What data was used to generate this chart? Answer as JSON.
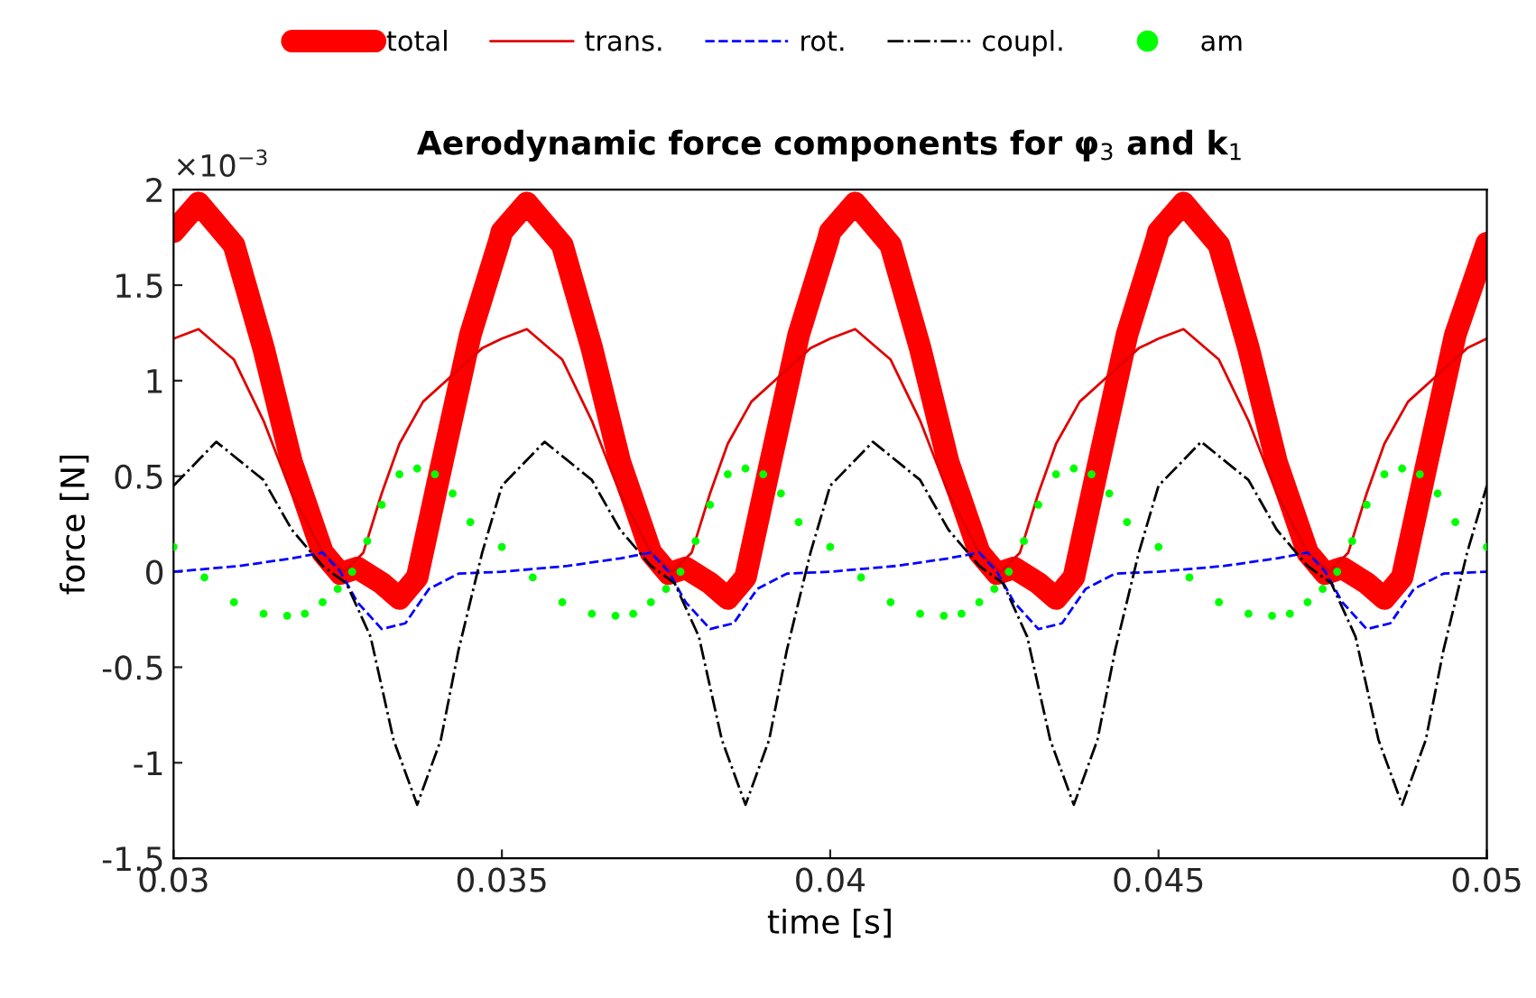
{
  "chart_data": {
    "type": "line",
    "title": "Aerodynamic force components for φ$_{3}$ and k$_{1}$",
    "xlabel": "time [s]",
    "ylabel": "force [N]",
    "annotations": [
      "×10$^{−3}$"
    ],
    "xlim": [
      0.03,
      0.05
    ],
    "xticks": [
      0.03,
      0.035,
      0.04,
      0.045,
      0.05
    ],
    "ylim": [
      -1.5,
      2
    ],
    "yticks": [
      -1.5,
      -1,
      -0.5,
      0,
      0.5,
      1,
      1.5,
      2
    ],
    "grid": false,
    "legend": "top",
    "series": [
      {
        "name": "total",
        "color": "#ff0000",
        "line_style": "solid",
        "marker": "none",
        "x": [
          0.03,
          0.03038,
          0.03092,
          0.03137,
          0.0318,
          0.03227,
          0.03254,
          0.0328,
          0.03317,
          0.03344,
          0.03371,
          0.03407,
          0.03452,
          0.03497,
          0.035,
          0.03538,
          0.03592,
          0.03637,
          0.0368,
          0.03727,
          0.03754,
          0.0378,
          0.03817,
          0.03844,
          0.03871,
          0.03907,
          0.03952,
          0.03997,
          0.04,
          0.04038,
          0.04092,
          0.04137,
          0.0418,
          0.04227,
          0.04254,
          0.0428,
          0.04317,
          0.04344,
          0.04371,
          0.04407,
          0.04452,
          0.04497,
          0.045,
          0.04538,
          0.04592,
          0.04637,
          0.0468,
          0.04727,
          0.04754,
          0.0478,
          0.04817,
          0.04844,
          0.04871,
          0.04907,
          0.04952,
          0.05
        ],
        "values": [
          1.78,
          1.93,
          1.71,
          1.17,
          0.57,
          0.1,
          -0.01,
          0.02,
          -0.06,
          -0.14,
          -0.03,
          0.54,
          1.24,
          1.74,
          1.78,
          1.93,
          1.71,
          1.17,
          0.57,
          0.1,
          -0.01,
          0.02,
          -0.06,
          -0.14,
          -0.03,
          0.54,
          1.24,
          1.74,
          1.78,
          1.93,
          1.71,
          1.17,
          0.57,
          0.1,
          -0.01,
          0.02,
          -0.06,
          -0.14,
          -0.03,
          0.54,
          1.24,
          1.74,
          1.78,
          1.93,
          1.71,
          1.17,
          0.57,
          0.1,
          -0.01,
          0.02,
          -0.06,
          -0.14,
          -0.03,
          0.54,
          1.24,
          1.72
        ]
      },
      {
        "name": "trans.",
        "color": "#e00000",
        "line_style": "solid",
        "marker": "none",
        "x": [
          0.03,
          0.03038,
          0.03092,
          0.03137,
          0.0318,
          0.03227,
          0.0326,
          0.03289,
          0.03317,
          0.03344,
          0.0338,
          0.03425,
          0.0347,
          0.035,
          0.03538,
          0.03592,
          0.03637,
          0.0368,
          0.03727,
          0.0376,
          0.03789,
          0.03817,
          0.03844,
          0.0388,
          0.03925,
          0.0397,
          0.04,
          0.04038,
          0.04092,
          0.04137,
          0.0418,
          0.04227,
          0.0426,
          0.04289,
          0.04317,
          0.04344,
          0.0438,
          0.04425,
          0.0447,
          0.045,
          0.04538,
          0.04592,
          0.04637,
          0.0468,
          0.04727,
          0.0476,
          0.04789,
          0.04817,
          0.04844,
          0.0488,
          0.04925,
          0.0497,
          0.05
        ],
        "values": [
          1.22,
          1.27,
          1.11,
          0.79,
          0.41,
          0.1,
          0.0,
          0.1,
          0.41,
          0.67,
          0.89,
          1.03,
          1.17,
          1.22,
          1.27,
          1.11,
          0.79,
          0.41,
          0.1,
          0.0,
          0.1,
          0.41,
          0.67,
          0.89,
          1.03,
          1.17,
          1.22,
          1.27,
          1.11,
          0.79,
          0.41,
          0.1,
          0.0,
          0.1,
          0.41,
          0.67,
          0.89,
          1.03,
          1.17,
          1.22,
          1.27,
          1.11,
          0.79,
          0.41,
          0.1,
          0.0,
          0.1,
          0.41,
          0.67,
          0.89,
          1.03,
          1.17,
          1.22
        ]
      },
      {
        "name": "rot.",
        "color": "#0000ff",
        "line_style": "dashed",
        "marker": "none",
        "x": [
          0.03,
          0.031,
          0.0318,
          0.03227,
          0.03254,
          0.0328,
          0.03317,
          0.03353,
          0.03389,
          0.03434,
          0.035,
          0.036,
          0.0368,
          0.03727,
          0.03754,
          0.0378,
          0.03817,
          0.03853,
          0.03889,
          0.03934,
          0.04,
          0.041,
          0.0418,
          0.04227,
          0.04254,
          0.0428,
          0.04317,
          0.04353,
          0.04389,
          0.04434,
          0.045,
          0.046,
          0.0468,
          0.04727,
          0.04754,
          0.0478,
          0.04817,
          0.04853,
          0.04889,
          0.04934,
          0.05
        ],
        "values": [
          0.0,
          0.03,
          0.07,
          0.1,
          0.0,
          -0.16,
          -0.3,
          -0.27,
          -0.09,
          -0.01,
          0.0,
          0.03,
          0.07,
          0.1,
          0.0,
          -0.16,
          -0.3,
          -0.27,
          -0.09,
          -0.01,
          0.0,
          0.03,
          0.07,
          0.1,
          0.0,
          -0.16,
          -0.3,
          -0.27,
          -0.09,
          -0.01,
          0.0,
          0.03,
          0.07,
          0.1,
          0.0,
          -0.16,
          -0.3,
          -0.27,
          -0.09,
          -0.01,
          0.0
        ]
      },
      {
        "name": "coupl.",
        "color": "#000000",
        "line_style": "dashdot",
        "marker": "none",
        "x": [
          0.03,
          0.03065,
          0.03137,
          0.0318,
          0.03227,
          0.03263,
          0.033,
          0.03335,
          0.03371,
          0.03407,
          0.03434,
          0.0347,
          0.035,
          0.03565,
          0.03637,
          0.0368,
          0.03727,
          0.03763,
          0.038,
          0.03835,
          0.03871,
          0.03907,
          0.03934,
          0.0397,
          0.04,
          0.04065,
          0.04137,
          0.0418,
          0.04227,
          0.04263,
          0.043,
          0.04335,
          0.04371,
          0.04407,
          0.04434,
          0.0447,
          0.045,
          0.04565,
          0.04637,
          0.0468,
          0.04727,
          0.04763,
          0.048,
          0.04835,
          0.04871,
          0.04907,
          0.04934,
          0.0497,
          0.05
        ],
        "values": [
          0.45,
          0.68,
          0.48,
          0.22,
          0.03,
          -0.06,
          -0.34,
          -0.88,
          -1.22,
          -0.88,
          -0.41,
          0.1,
          0.45,
          0.68,
          0.48,
          0.22,
          0.03,
          -0.06,
          -0.34,
          -0.88,
          -1.22,
          -0.88,
          -0.41,
          0.1,
          0.45,
          0.68,
          0.48,
          0.22,
          0.03,
          -0.06,
          -0.34,
          -0.88,
          -1.22,
          -0.88,
          -0.41,
          0.1,
          0.45,
          0.68,
          0.48,
          0.22,
          0.03,
          -0.06,
          -0.34,
          -0.88,
          -1.22,
          -0.88,
          -0.41,
          0.1,
          0.45
        ]
      },
      {
        "name": "am",
        "type": "scatter",
        "color": "#00ff00",
        "marker": "circle",
        "x": [
          0.03,
          0.03047,
          0.03092,
          0.03137,
          0.03173,
          0.032,
          0.03227,
          0.0325,
          0.03272,
          0.03295,
          0.03317,
          0.03344,
          0.03371,
          0.03398,
          0.03425,
          0.03452,
          0.035,
          0.03547,
          0.03592,
          0.03637,
          0.03673,
          0.037,
          0.03727,
          0.0375,
          0.03772,
          0.03795,
          0.03817,
          0.03844,
          0.03871,
          0.03898,
          0.03925,
          0.03952,
          0.04,
          0.04047,
          0.04092,
          0.04137,
          0.04173,
          0.042,
          0.04227,
          0.0425,
          0.04272,
          0.04295,
          0.04317,
          0.04344,
          0.04371,
          0.04398,
          0.04425,
          0.04452,
          0.045,
          0.04547,
          0.04592,
          0.04637,
          0.04673,
          0.047,
          0.04727,
          0.0475,
          0.04772,
          0.04795,
          0.04817,
          0.04844,
          0.04871,
          0.04898,
          0.04925,
          0.04952,
          0.05
        ],
        "values": [
          0.13,
          -0.03,
          -0.16,
          -0.22,
          -0.23,
          -0.22,
          -0.16,
          -0.09,
          0.0,
          0.16,
          0.35,
          0.51,
          0.54,
          0.51,
          0.41,
          0.26,
          0.13,
          -0.03,
          -0.16,
          -0.22,
          -0.23,
          -0.22,
          -0.16,
          -0.09,
          0.0,
          0.16,
          0.35,
          0.51,
          0.54,
          0.51,
          0.41,
          0.26,
          0.13,
          -0.03,
          -0.16,
          -0.22,
          -0.23,
          -0.22,
          -0.16,
          -0.09,
          0.0,
          0.16,
          0.35,
          0.51,
          0.54,
          0.51,
          0.41,
          0.26,
          0.13,
          -0.03,
          -0.16,
          -0.22,
          -0.23,
          -0.22,
          -0.16,
          -0.09,
          0.0,
          0.16,
          0.35,
          0.51,
          0.54,
          0.51,
          0.41,
          0.26,
          0.13
        ]
      }
    ]
  }
}
